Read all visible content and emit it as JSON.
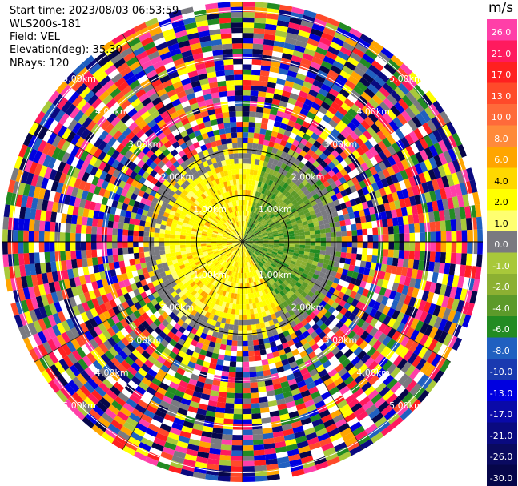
{
  "header": {
    "start_time": "Start time: 2023/08/03 06:53:59",
    "instrument": "WLS200s-181",
    "field": "Field: VEL",
    "elevation": "Elevation(deg): 35.30",
    "nrays": "NRays: 120"
  },
  "colorbar": {
    "unit": "m/s",
    "levels": [
      {
        "label": "26.0",
        "color": "#ff3fa8"
      },
      {
        "label": "21.0",
        "color": "#ff1a5e"
      },
      {
        "label": "17.0",
        "color": "#ff2020"
      },
      {
        "label": "13.0",
        "color": "#ff4a2a"
      },
      {
        "label": "10.0",
        "color": "#ff6a3a"
      },
      {
        "label": "8.0",
        "color": "#ff8a3a"
      },
      {
        "label": "6.0",
        "color": "#ffa500"
      },
      {
        "label": "4.0",
        "color": "#ffd800"
      },
      {
        "label": "2.0",
        "color": "#ffff00"
      },
      {
        "label": "1.0",
        "color": "#ffff70"
      },
      {
        "label": "0.0",
        "color": "#7a7a80"
      },
      {
        "label": "-1.0",
        "color": "#a8c83a"
      },
      {
        "label": "-2.0",
        "color": "#8cb032"
      },
      {
        "label": "-4.0",
        "color": "#5c9a2a"
      },
      {
        "label": "-6.0",
        "color": "#228b22"
      },
      {
        "label": "-8.0",
        "color": "#2060c0"
      },
      {
        "label": "-10.0",
        "color": "#1a3ab0"
      },
      {
        "label": "-13.0",
        "color": "#0000e0"
      },
      {
        "label": "-17.0",
        "color": "#0a0aa8"
      },
      {
        "label": "-21.0",
        "color": "#0a0a80"
      },
      {
        "label": "-26.0",
        "color": "#0a0a60"
      },
      {
        "label": "-30.0",
        "color": "#06064a"
      }
    ]
  },
  "chart_data": {
    "type": "heatmap",
    "projection": "polar PPI",
    "field": "VEL",
    "units": "m/s",
    "elevation_deg": 35.3,
    "nrays": 120,
    "range_rings_km": [
      1.0,
      2.0,
      3.0,
      4.0,
      5.0
    ],
    "ring_labels": [
      "1.00km",
      "2.00km",
      "3.00km",
      "4.00km",
      "5.00km"
    ],
    "max_range_km": 5.2,
    "pattern": [
      {
        "sector": "north-west to south",
        "dominant_level": "2.0",
        "range_km": [
          0.0,
          2.2
        ]
      },
      {
        "sector": "north-east to south-east",
        "dominant_level": "-4.0",
        "range_km": [
          0.0,
          2.2
        ]
      },
      {
        "sector": "transition zone",
        "dominant_level": "0.0",
        "range_km": [
          1.6,
          2.3
        ]
      },
      {
        "sector": "all",
        "dominant_level": "mixed",
        "range_km": [
          2.3,
          5.2
        ]
      }
    ]
  }
}
